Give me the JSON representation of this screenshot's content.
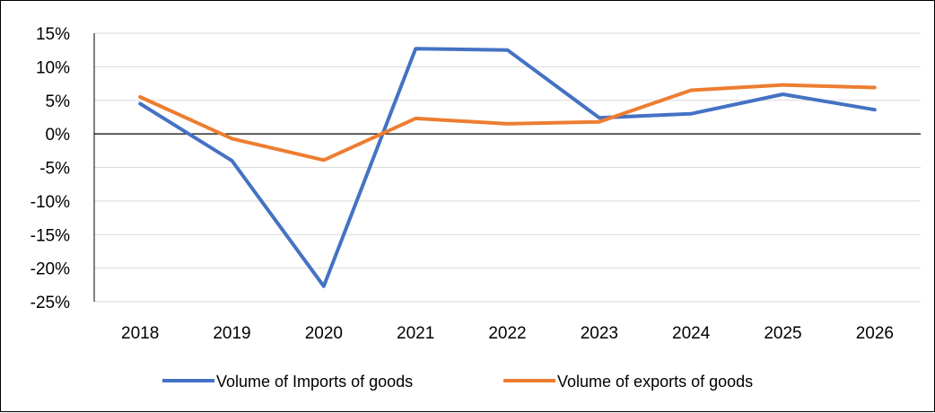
{
  "chart_data": {
    "type": "line",
    "title": "",
    "xlabel": "",
    "ylabel": "",
    "categories": [
      "2018",
      "2019",
      "2020",
      "2021",
      "2022",
      "2023",
      "2024",
      "2025",
      "2026"
    ],
    "ylim": [
      -25,
      15
    ],
    "y_ticks": [
      15,
      10,
      5,
      0,
      -5,
      -10,
      -15,
      -20,
      -25
    ],
    "y_tick_labels": [
      "15%",
      "10%",
      "5%",
      "0%",
      "-5%",
      "-10%",
      "-15%",
      "-20%",
      "-25%"
    ],
    "y_unit": "%",
    "grid": true,
    "legend_position": "bottom",
    "series": [
      {
        "name": "Volume of Imports of goods",
        "color": "#4472C4",
        "values": [
          4.5,
          -4.0,
          -22.7,
          12.7,
          12.5,
          2.4,
          3.0,
          5.9,
          3.6
        ]
      },
      {
        "name": "Volume of exports of goods",
        "color": "#ED7D31",
        "values": [
          5.5,
          -0.7,
          -3.9,
          2.3,
          1.5,
          1.8,
          6.5,
          7.3,
          6.9
        ]
      }
    ]
  }
}
